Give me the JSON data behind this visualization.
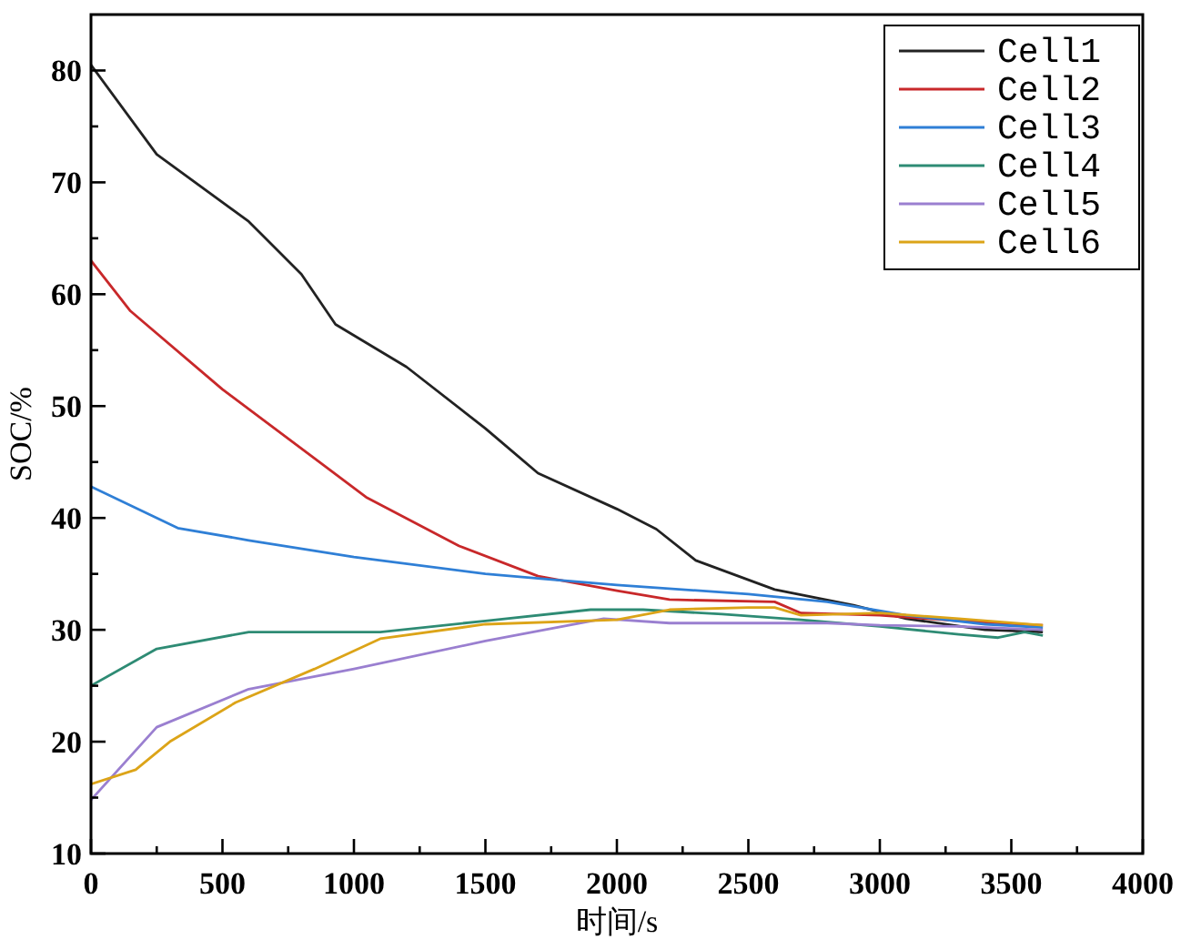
{
  "chart_data": {
    "type": "line",
    "xlabel": "时间/s",
    "ylabel": "SOC/%",
    "xlim": [
      0,
      4000
    ],
    "ylim": [
      10,
      85
    ],
    "xticks": [
      0,
      {
        "value": 250,
        "label": null
      },
      500,
      {
        "value": 750,
        "label": null
      },
      1000,
      {
        "value": 1250,
        "label": null
      },
      1500,
      {
        "value": 1750,
        "label": null
      },
      2000,
      {
        "value": 2250,
        "label": null
      },
      2500,
      {
        "value": 2750,
        "label": null
      },
      3000,
      {
        "value": 3250,
        "label": null
      },
      3500,
      {
        "value": 3750,
        "label": null
      },
      4000
    ],
    "yticks": [
      10,
      {
        "value": 15,
        "label": null
      },
      20,
      {
        "value": 25,
        "label": null
      },
      30,
      {
        "value": 35,
        "label": null
      },
      40,
      {
        "value": 45,
        "label": null
      },
      50,
      {
        "value": 55,
        "label": null
      },
      60,
      {
        "value": 65,
        "label": null
      },
      70,
      {
        "value": 75,
        "label": null
      },
      80
    ],
    "legend": "top right",
    "grid": false,
    "marker": "none",
    "line_style": "solid",
    "series": [
      {
        "name": "Cell1",
        "color": "#222222",
        "x": [
          0,
          250,
          600,
          800,
          930,
          1200,
          1500,
          1700,
          2000,
          2150,
          2300,
          2600,
          2900,
          3100,
          3400,
          3620
        ],
        "values": [
          80.5,
          72.5,
          66.5,
          61.8,
          57.3,
          53.5,
          48,
          44,
          40.8,
          39,
          36.2,
          33.6,
          32.2,
          31,
          30,
          29.8
        ]
      },
      {
        "name": "Cell2",
        "color": "#c8282a",
        "x": [
          0,
          150,
          500,
          1050,
          1400,
          1700,
          2000,
          2200,
          2600,
          2700,
          3000,
          3300,
          3620
        ],
        "values": [
          63,
          58.5,
          51.5,
          41.8,
          37.5,
          34.8,
          33.5,
          32.7,
          32.5,
          31.5,
          31.3,
          30.8,
          30.4
        ]
      },
      {
        "name": "Cell3",
        "color": "#2f7fd6",
        "x": [
          0,
          330,
          600,
          1000,
          1500,
          1750,
          2000,
          2500,
          2800,
          3100,
          3400,
          3620
        ],
        "values": [
          42.8,
          39.1,
          38,
          36.5,
          35,
          34.5,
          34,
          33.2,
          32.5,
          31.3,
          30.5,
          30.2
        ]
      },
      {
        "name": "Cell4",
        "color": "#2e8b74",
        "x": [
          0,
          250,
          600,
          1100,
          1500,
          1900,
          2100,
          2400,
          2700,
          3000,
          3300,
          3450,
          3550,
          3620
        ],
        "values": [
          25,
          28.3,
          29.8,
          29.8,
          30.8,
          31.8,
          31.8,
          31.4,
          30.9,
          30.3,
          29.6,
          29.3,
          29.8,
          29.5
        ]
      },
      {
        "name": "Cell5",
        "color": "#9a7fd0",
        "x": [
          0,
          250,
          600,
          1000,
          1500,
          1950,
          2200,
          2500,
          2800,
          3000,
          3300,
          3620
        ],
        "values": [
          14.8,
          21.3,
          24.7,
          26.5,
          29,
          31,
          30.6,
          30.6,
          30.6,
          30.4,
          30.3,
          30
        ]
      },
      {
        "name": "Cell6",
        "color": "#dca418",
        "x": [
          0,
          170,
          300,
          550,
          850,
          1100,
          1500,
          2000,
          2200,
          2500,
          2600,
          2700,
          3000,
          3300,
          3620
        ],
        "values": [
          16.2,
          17.5,
          20,
          23.5,
          26.5,
          29.2,
          30.5,
          30.9,
          31.8,
          32,
          32,
          31.3,
          31.5,
          31,
          30.4
        ]
      }
    ]
  }
}
